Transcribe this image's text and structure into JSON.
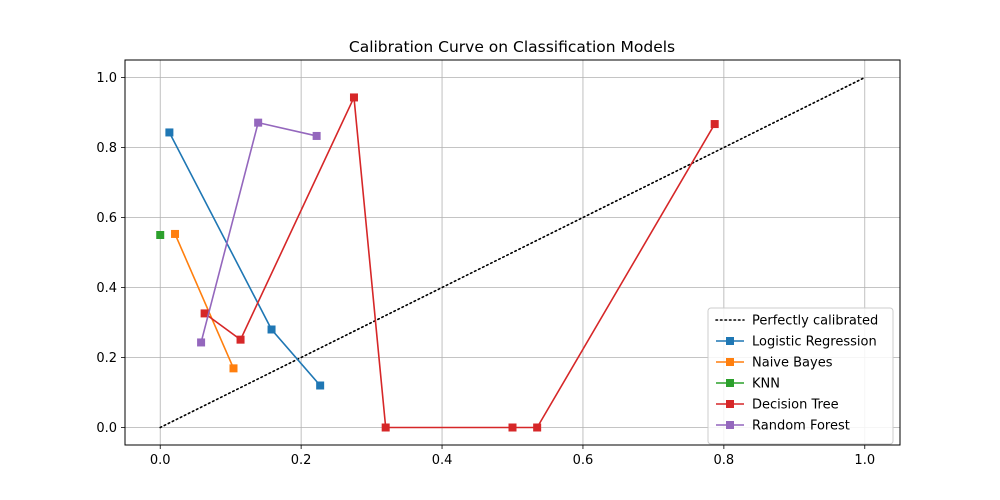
{
  "chart_data": {
    "type": "line",
    "title": "Calibration Curve on Classification Models",
    "xlabel": "",
    "ylabel": "",
    "xlim": [
      -0.05,
      1.05
    ],
    "ylim": [
      -0.05,
      1.05
    ],
    "xticks": [
      "0.0",
      "0.2",
      "0.4",
      "0.6",
      "0.8",
      "1.0"
    ],
    "yticks": [
      "0.0",
      "0.2",
      "0.4",
      "0.6",
      "0.8",
      "1.0"
    ],
    "grid": true,
    "legend_position": "lower-right",
    "reference_line": {
      "name": "Perfectly calibrated",
      "x": [
        0,
        1
      ],
      "y": [
        0,
        1
      ],
      "style": "dotted",
      "color": "#000000"
    },
    "series": [
      {
        "name": "Logistic Regression",
        "color": "#1f77b4",
        "points": [
          [
            0.013,
            0.843
          ],
          [
            0.158,
            0.28
          ],
          [
            0.227,
            0.12
          ]
        ]
      },
      {
        "name": "Naive Bayes",
        "color": "#ff7f0e",
        "points": [
          [
            0.021,
            0.553
          ],
          [
            0.104,
            0.169
          ]
        ]
      },
      {
        "name": "KNN",
        "color": "#2ca02c",
        "points": [
          [
            0.0,
            0.55
          ]
        ]
      },
      {
        "name": "Decision Tree",
        "color": "#d62728",
        "points": [
          [
            0.063,
            0.326
          ],
          [
            0.114,
            0.251
          ],
          [
            0.275,
            0.943
          ],
          [
            0.32,
            0.0
          ],
          [
            0.5,
            0.0
          ],
          [
            0.535,
            0.0
          ],
          [
            0.787,
            0.867
          ]
        ]
      },
      {
        "name": "Random Forest",
        "color": "#9467bd",
        "points": [
          [
            0.058,
            0.243
          ],
          [
            0.139,
            0.871
          ],
          [
            0.222,
            0.833
          ]
        ]
      }
    ]
  }
}
